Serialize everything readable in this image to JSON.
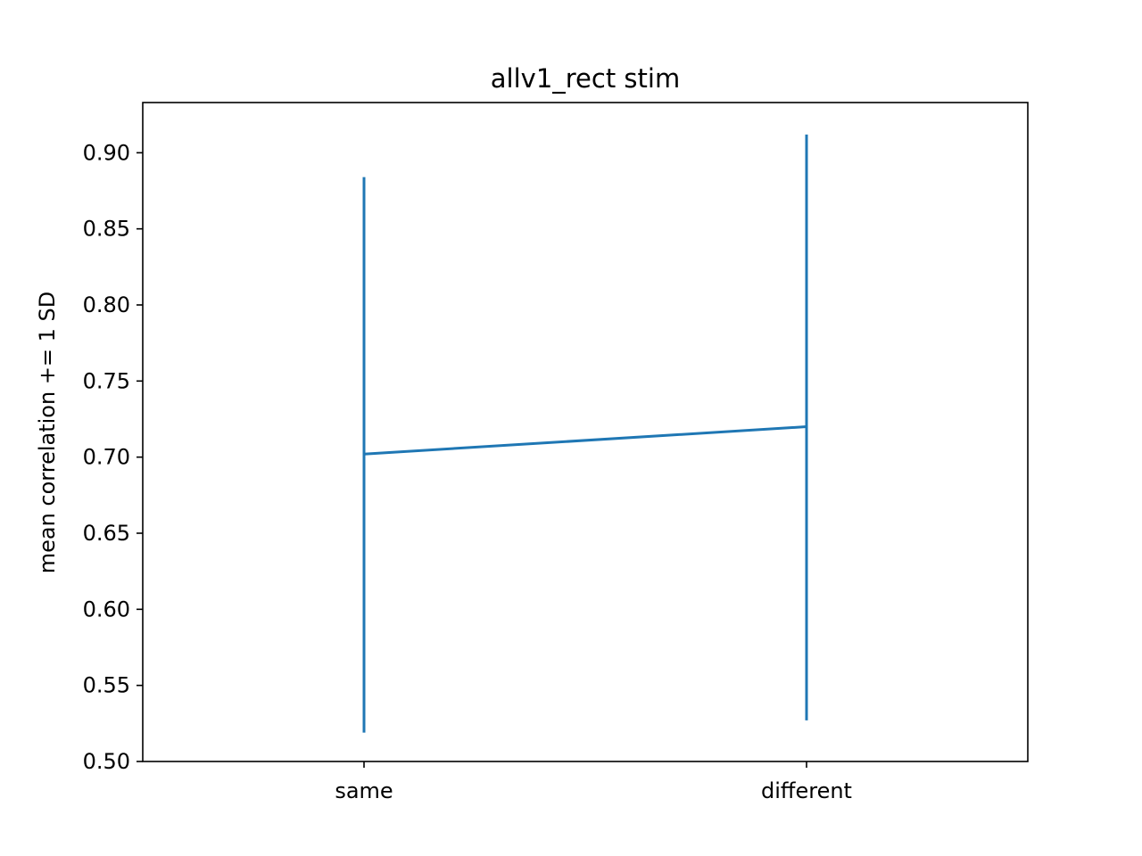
{
  "chart_data": {
    "type": "line",
    "title": "allv1_rect stim",
    "xlabel": "",
    "ylabel": "mean correlation += 1 SD",
    "categories": [
      "same",
      "different"
    ],
    "series": [
      {
        "values": [
          0.702,
          0.72
        ],
        "error_low": [
          0.519,
          0.527
        ],
        "error_high": [
          0.884,
          0.912
        ]
      }
    ],
    "ylim": [
      0.5,
      0.933
    ],
    "yticks": [
      0.5,
      0.55,
      0.6,
      0.65,
      0.7,
      0.75,
      0.8,
      0.85,
      0.9
    ],
    "ytick_labels": [
      "0.50",
      "0.55",
      "0.60",
      "0.65",
      "0.70",
      "0.75",
      "0.80",
      "0.85",
      "0.90"
    ],
    "grid": false,
    "legend": "none",
    "colors": {
      "series": "#1f77b4",
      "axes": "#000000"
    }
  }
}
